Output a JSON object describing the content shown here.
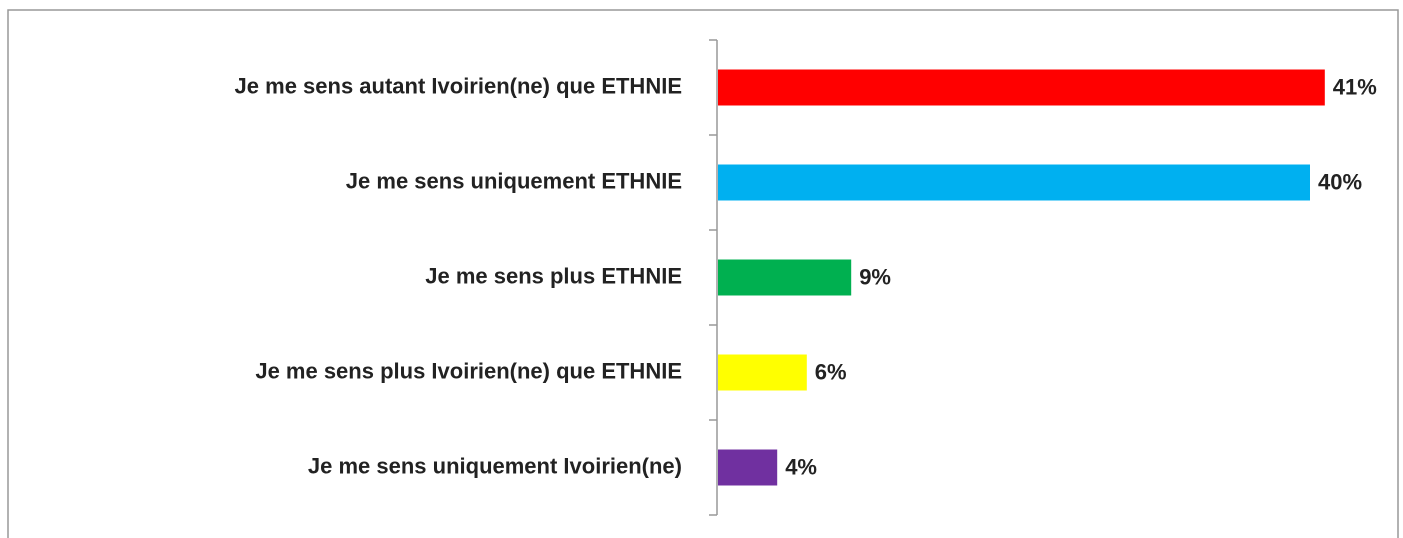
{
  "chart_data": {
    "type": "bar",
    "orientation": "horizontal",
    "categories": [
      "Je me sens autant Ivoirien(ne) que ETHNIE",
      "Je me sens uniquement ETHNIE",
      "Je me sens plus ETHNIE",
      "Je me sens plus Ivoirien(ne) que ETHNIE",
      "Je me sens uniquement Ivoirien(ne)"
    ],
    "values": [
      41,
      40,
      9,
      6,
      4
    ],
    "value_labels": [
      "41%",
      "40%",
      "9%",
      "6%",
      "4%"
    ],
    "colors": [
      "#ff0000",
      "#00b0f0",
      "#00b050",
      "#ffff00",
      "#7030a0"
    ]
  }
}
